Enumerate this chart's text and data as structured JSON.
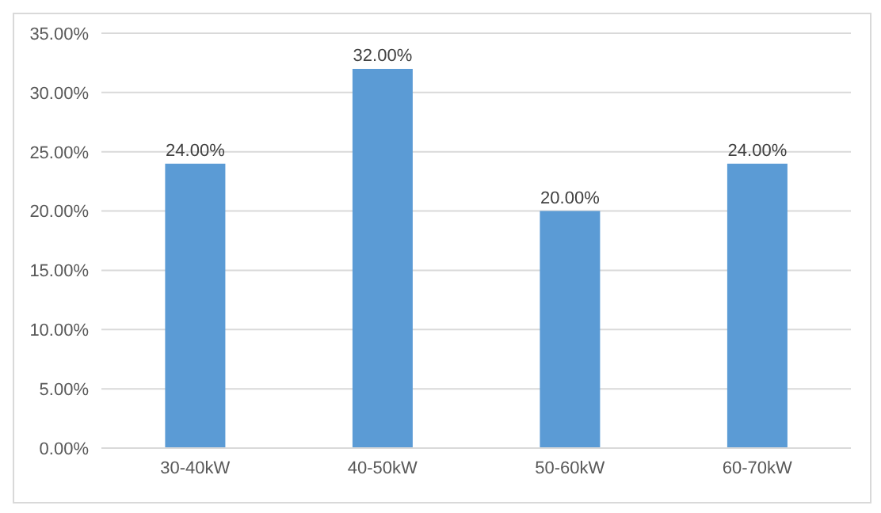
{
  "chart_data": {
    "type": "bar",
    "categories": [
      "30-40kW",
      "40-50kW",
      "50-60kW",
      "60-70kW"
    ],
    "values": [
      24,
      32,
      20,
      24
    ],
    "value_labels": [
      "24.00%",
      "32.00%",
      "20.00%",
      "24.00%"
    ],
    "color": "#5b9bd5",
    "ylim": [
      0,
      35
    ],
    "yticks": [
      {
        "value": 0,
        "label": "0.00%"
      },
      {
        "value": 5,
        "label": "5.00%"
      },
      {
        "value": 10,
        "label": "10.00%"
      },
      {
        "value": 15,
        "label": "15.00%"
      },
      {
        "value": 20,
        "label": "20.00%"
      },
      {
        "value": 25,
        "label": "25.00%"
      },
      {
        "value": 30,
        "label": "30.00%"
      },
      {
        "value": 35,
        "label": "35.00%"
      }
    ],
    "grid": "y"
  }
}
